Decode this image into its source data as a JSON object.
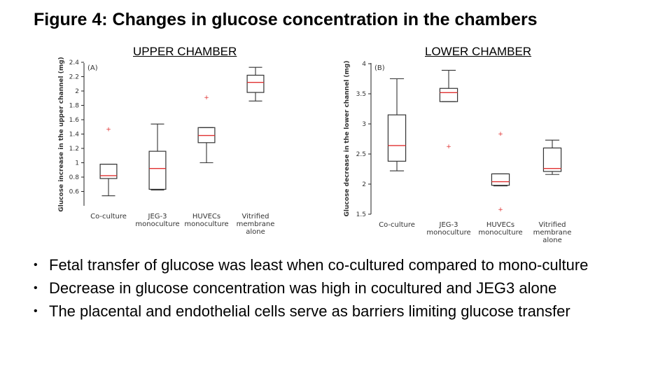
{
  "slide": {
    "title": "Figure 4: Changes in glucose concentration in the chambers",
    "bullets": [
      "Fetal transfer of glucose was least when co-cultured compared to mono-culture",
      "Decrease in glucose concentration was high in cocultured and JEG3 alone",
      "The placental and endothelial cells serve as barriers limiting glucose transfer"
    ]
  },
  "chart_data": [
    {
      "type": "box",
      "heading": "UPPER CHAMBER",
      "panel": "(A)",
      "ylabel": "Glucose increase in the upper channel (mg)",
      "ylim": [
        0.4,
        2.4
      ],
      "yticks": [
        0.6,
        0.8,
        1,
        1.2,
        1.4,
        1.6,
        1.8,
        2,
        2.2,
        2.4
      ],
      "categories": [
        [
          "Co-culture"
        ],
        [
          "JEG-3",
          "monoculture"
        ],
        [
          "HUVECs",
          "monoculture"
        ],
        [
          "Vitrified",
          "membrane",
          "alone"
        ]
      ],
      "boxes": [
        {
          "min": 0.54,
          "q1": 0.78,
          "median": 0.82,
          "q3": 0.98,
          "max": 0.98,
          "outliers": [
            1.47
          ]
        },
        {
          "min": 0.62,
          "q1": 0.63,
          "median": 0.92,
          "q3": 1.16,
          "max": 1.54,
          "outliers": []
        },
        {
          "min": 1.0,
          "q1": 1.28,
          "median": 1.38,
          "q3": 1.49,
          "max": 1.49,
          "outliers": [
            1.91
          ]
        },
        {
          "min": 1.86,
          "q1": 1.98,
          "median": 2.12,
          "q3": 2.22,
          "max": 2.33,
          "outliers": []
        }
      ]
    },
    {
      "type": "box",
      "heading": "LOWER CHAMBER",
      "panel": "(B)",
      "ylabel": "Glucose decrease in the lower channel (mg)",
      "ylim": [
        1.5,
        4
      ],
      "yticks": [
        1.5,
        2,
        2.5,
        3,
        3.5,
        4
      ],
      "categories": [
        [
          "Co-culture"
        ],
        [
          "JEG-3",
          "monoculture"
        ],
        [
          "HUVECs",
          "monoculture"
        ],
        [
          "Vitrified",
          "membrane",
          "alone"
        ]
      ],
      "boxes": [
        {
          "min": 2.22,
          "q1": 2.38,
          "median": 2.64,
          "q3": 3.15,
          "max": 3.75,
          "outliers": []
        },
        {
          "min": 3.37,
          "q1": 3.37,
          "median": 3.52,
          "q3": 3.59,
          "max": 3.89,
          "outliers": [
            2.63
          ]
        },
        {
          "min": 1.97,
          "q1": 1.98,
          "median": 2.04,
          "q3": 2.17,
          "max": 2.17,
          "outliers": [
            2.84,
            1.58
          ]
        },
        {
          "min": 2.16,
          "q1": 2.21,
          "median": 2.26,
          "q3": 2.6,
          "max": 2.73,
          "outliers": []
        }
      ]
    }
  ]
}
